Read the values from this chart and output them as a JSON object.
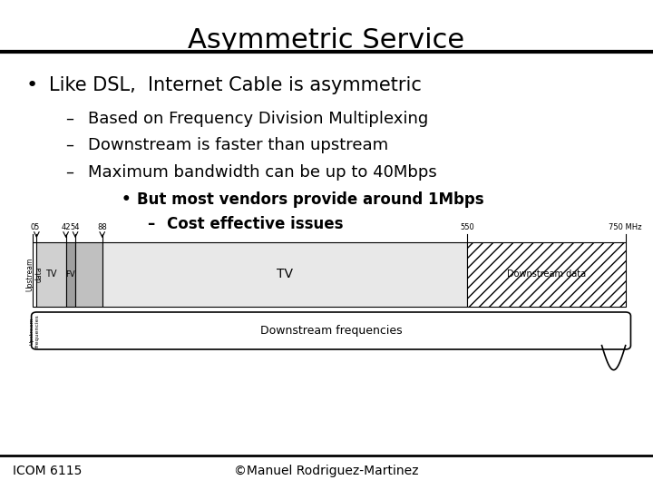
{
  "title": "Asymmetric Service",
  "bullet1": "Like DSL,  Internet Cable is asymmetric",
  "sub1": "Based on Frequency Division Multiplexing",
  "sub2": "Downstream is faster than upstream",
  "sub3": "Maximum bandwidth can be up to 40Mbps",
  "sub3a": "But most vendors provide around 1Mbps",
  "sub3b": "Cost effective issues",
  "footer_left": "ICOM 6115",
  "footer_right": "©Manuel Rodriguez-Martinez",
  "bg_color": "#ffffff",
  "text_color": "#000000"
}
